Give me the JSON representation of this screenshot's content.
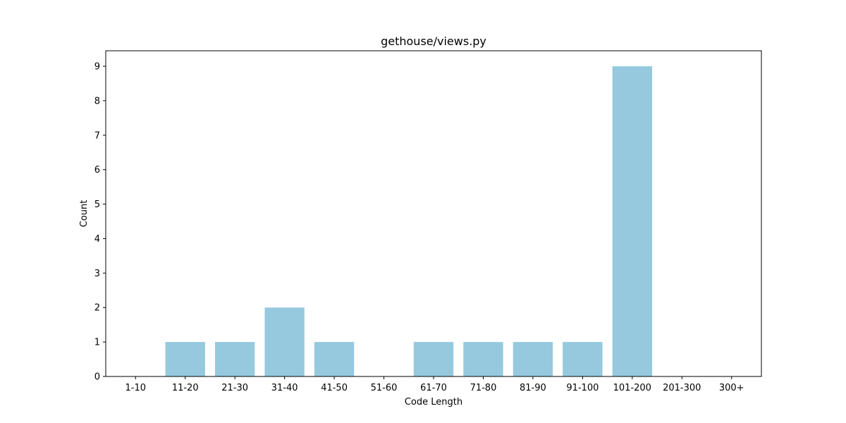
{
  "chart_data": {
    "type": "bar",
    "title": "gethouse/views.py",
    "xlabel": "Code Length",
    "ylabel": "Count",
    "categories": [
      "1-10",
      "11-20",
      "21-30",
      "31-40",
      "41-50",
      "51-60",
      "61-70",
      "71-80",
      "81-90",
      "91-100",
      "101-200",
      "201-300",
      "300+"
    ],
    "values": [
      0,
      1,
      1,
      2,
      1,
      0,
      1,
      1,
      1,
      1,
      9,
      0,
      0
    ],
    "ylim": [
      0,
      9.45
    ],
    "yticks": [
      "0",
      "1",
      "2",
      "3",
      "4",
      "5",
      "6",
      "7",
      "8",
      "9"
    ],
    "bar_color": "#96c9de",
    "grid": false,
    "legend": "none"
  }
}
